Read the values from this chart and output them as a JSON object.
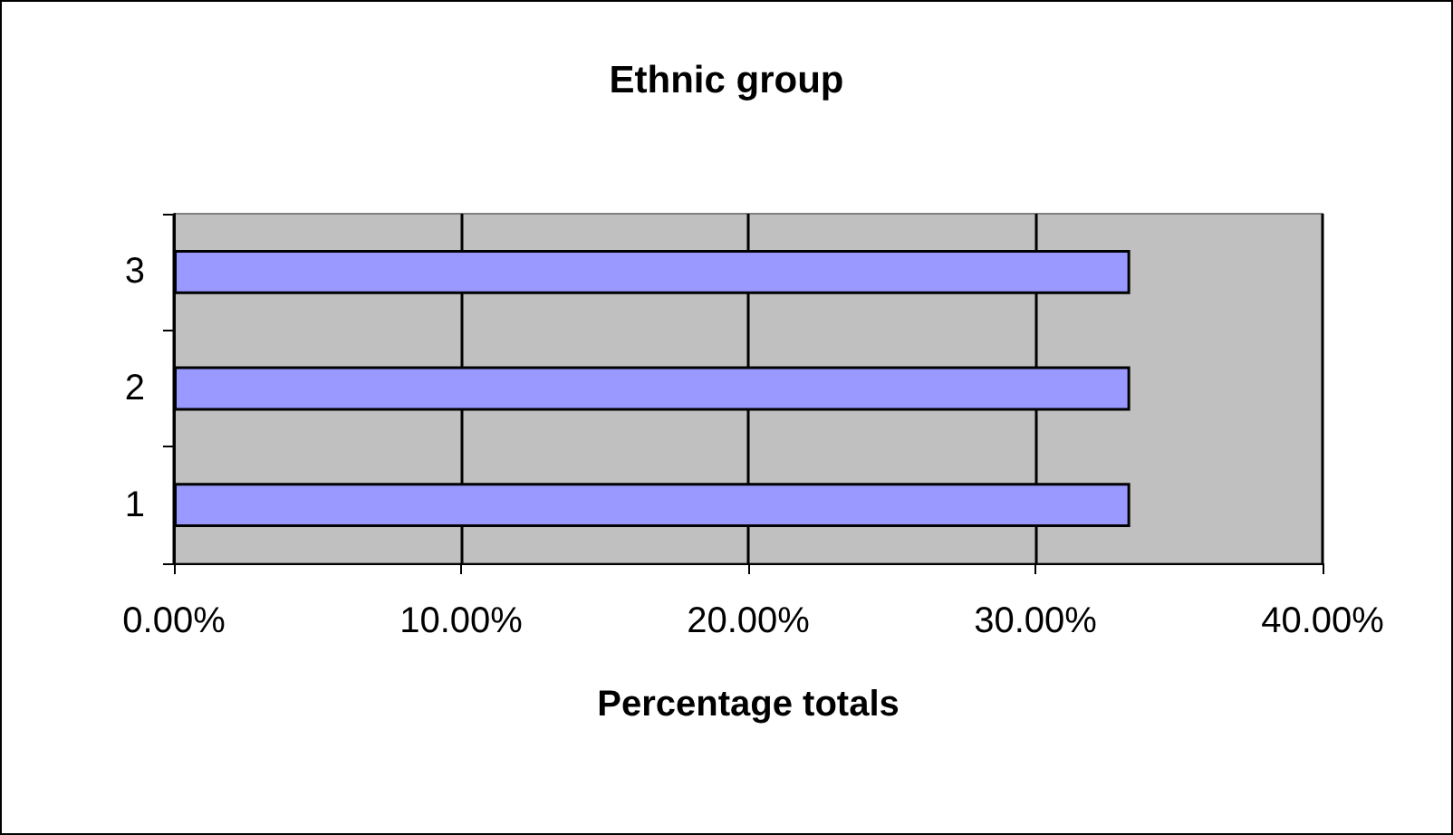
{
  "chart_data": {
    "type": "bar",
    "orientation": "horizontal",
    "title": "Ethnic group",
    "xlabel": "Percentage totals",
    "categories": [
      "3",
      "2",
      "1"
    ],
    "values": [
      33.3,
      33.3,
      33.3
    ],
    "color": "#9999ff",
    "xlim": [
      0,
      40
    ],
    "xticks": [
      {
        "value": 0,
        "label": "0.00%"
      },
      {
        "value": 10,
        "label": "10.00%"
      },
      {
        "value": 20,
        "label": "20.00%"
      },
      {
        "value": 30,
        "label": "30.00%"
      },
      {
        "value": 40,
        "label": "40.00%"
      }
    ],
    "grid": "x"
  }
}
